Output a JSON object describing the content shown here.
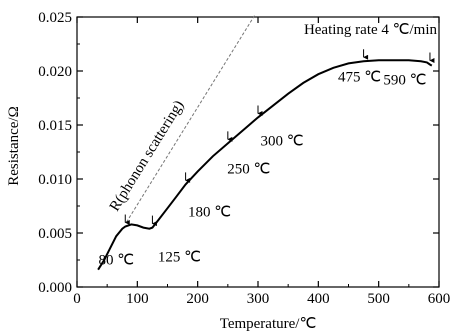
{
  "chart_data": {
    "type": "line",
    "xlabel": "Temperature/℃",
    "ylabel": "Resistance/Ω",
    "xlim": [
      0,
      600
    ],
    "ylim": [
      0,
      0.025
    ],
    "xticks": [
      0,
      100,
      200,
      300,
      400,
      500,
      600
    ],
    "xtick_labels": [
      "0",
      "100",
      "200",
      "300",
      "400",
      "500",
      "600"
    ],
    "yticks": [
      0,
      0.005,
      0.01,
      0.015,
      0.02,
      0.025
    ],
    "ytick_labels": [
      "0.000",
      "0.005",
      "0.010",
      "0.015",
      "0.020",
      "0.025"
    ],
    "grid": false,
    "series": [
      {
        "x": [
          35,
          45,
          55,
          65,
          75,
          80,
          90,
          100,
          110,
          120,
          125,
          135,
          150,
          165,
          180,
          200,
          225,
          250,
          275,
          300,
          325,
          350,
          375,
          400,
          425,
          450,
          475,
          500,
          525,
          550,
          570,
          580,
          585,
          588
        ],
        "y": [
          0.0016,
          0.0025,
          0.0036,
          0.0047,
          0.0054,
          0.0056,
          0.0058,
          0.0057,
          0.0055,
          0.0054,
          0.0055,
          0.0062,
          0.0073,
          0.0084,
          0.0095,
          0.0107,
          0.0121,
          0.0133,
          0.0145,
          0.0157,
          0.0168,
          0.0179,
          0.0189,
          0.0197,
          0.0203,
          0.0207,
          0.0209,
          0.021,
          0.021,
          0.021,
          0.0209,
          0.0208,
          0.0206,
          0.0205
        ]
      }
    ],
    "reference_line": {
      "label": "R(phonon scattering)",
      "style": "dashed",
      "x": [
        82,
        295
      ],
      "y": [
        0.006,
        0.0252
      ]
    },
    "annotations": [
      {
        "text": "80 ℃",
        "x": 80,
        "y": 0.0056
      },
      {
        "text": "125 ℃",
        "x": 125,
        "y": 0.0055
      },
      {
        "text": "180 ℃",
        "x": 180,
        "y": 0.0095
      },
      {
        "text": "250 ℃",
        "x": 250,
        "y": 0.0133
      },
      {
        "text": "300 ℃",
        "x": 300,
        "y": 0.0157
      },
      {
        "text": "475 ℃",
        "x": 475,
        "y": 0.0209
      },
      {
        "text": "590 ℃",
        "x": 585,
        "y": 0.0206
      }
    ],
    "note": "Heating rate 4 ℃/min"
  }
}
